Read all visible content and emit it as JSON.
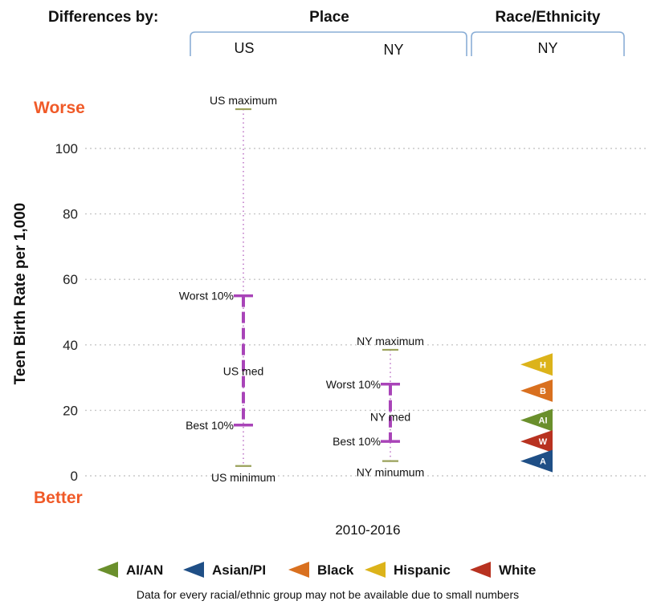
{
  "header": {
    "differences_by": "Differences by:",
    "place": "Place",
    "race_ethnicity": "Race/Ethnicity",
    "columns": [
      "US",
      "NY",
      "NY"
    ]
  },
  "chart_data": {
    "type": "scatter",
    "ylabel": "Teen Birth Rate per 1,000",
    "ylim": [
      0,
      110
    ],
    "yticks": [
      0,
      20,
      40,
      60,
      80,
      100
    ],
    "grid": true,
    "top_label": "Worse",
    "bottom_label": "Better",
    "period": "2010-2016",
    "colors": {
      "range": "#a944b8",
      "label_accent": "#f05a28",
      "minmax": "#9aa15a"
    },
    "ranges": [
      {
        "place": "US",
        "maximum": 112,
        "maximum_label": "US maximum",
        "worst10": 55,
        "worst10_label": "Worst 10%",
        "median": 32,
        "median_label": "US med",
        "best10": 15.5,
        "best10_label": "Best 10%",
        "minimum": 3,
        "minimum_label": "US minimum"
      },
      {
        "place": "NY",
        "maximum": 38.5,
        "maximum_label": "NY maximum",
        "worst10": 28,
        "worst10_label": "Worst 10%",
        "median": 18,
        "median_label": "NY med",
        "best10": 10.5,
        "best10_label": "Best 10%",
        "minimum": 4.5,
        "minimum_label": "NY minumum"
      }
    ],
    "groups": [
      {
        "code": "H",
        "name": "Hispanic",
        "value": 34,
        "color": "#dcb31a"
      },
      {
        "code": "B",
        "name": "Black",
        "value": 26,
        "color": "#d9701f"
      },
      {
        "code": "AI",
        "name": "AI/AN",
        "value": 17,
        "color": "#6a8f2c"
      },
      {
        "code": "W",
        "name": "White",
        "value": 10.5,
        "color": "#b83220"
      },
      {
        "code": "A",
        "name": "Asian/PI",
        "value": 4.5,
        "color": "#1f4f86"
      }
    ],
    "legend": [
      {
        "name": "AI/AN",
        "code": "AI",
        "color": "#6a8f2c"
      },
      {
        "name": "Asian/PI",
        "code": "A",
        "color": "#1f4f86"
      },
      {
        "name": "Black",
        "code": "B",
        "color": "#d9701f"
      },
      {
        "name": "Hispanic",
        "code": "H",
        "color": "#dcb31a"
      },
      {
        "name": "White",
        "code": "W",
        "color": "#b83220"
      }
    ],
    "note": "Data for every racial/ethnic group may not be available due to small numbers"
  }
}
